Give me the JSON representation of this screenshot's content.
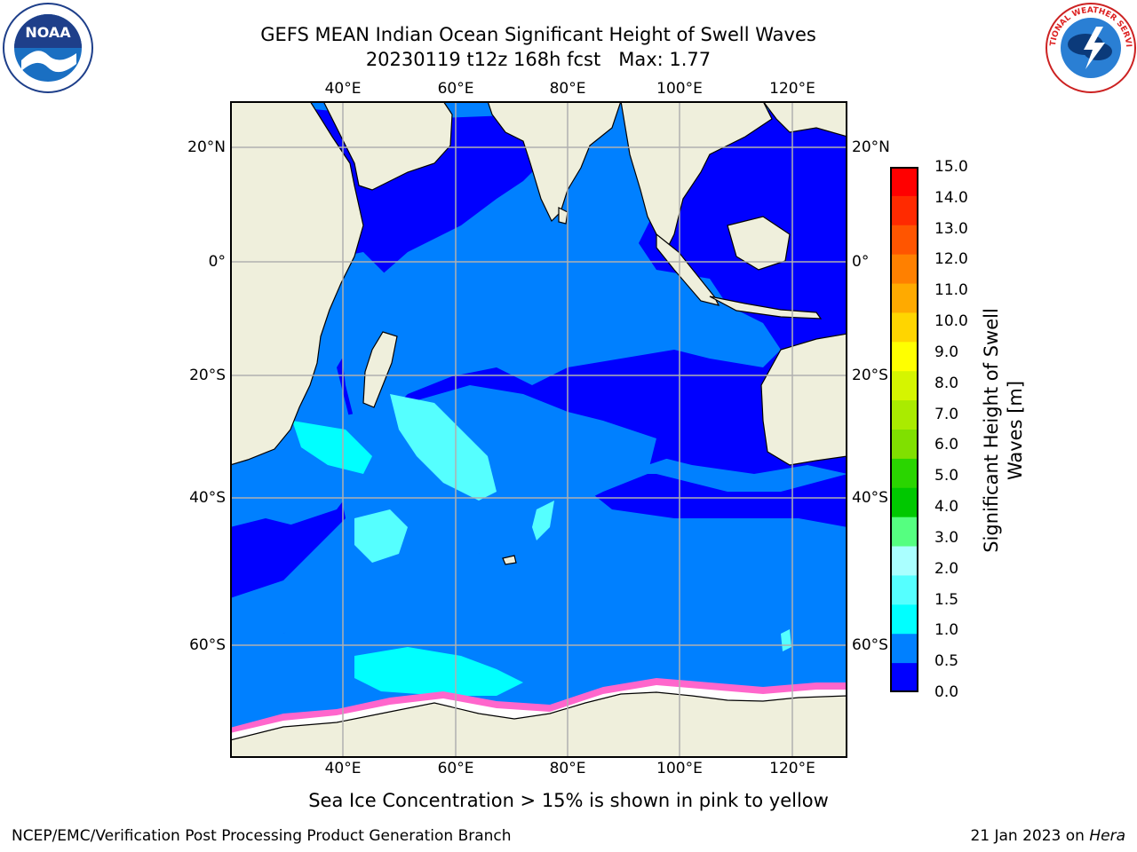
{
  "title": {
    "line1": "GEFS MEAN Indian Ocean Significant Height of Swell Waves",
    "line2": "20230119 t12z 168h fcst   Max: 1.77"
  },
  "axes": {
    "lon_labels": [
      "40°E",
      "60°E",
      "80°E",
      "100°E",
      "120°E"
    ],
    "lat_labels": [
      "20°N",
      "0°",
      "20°S",
      "40°S",
      "60°S"
    ]
  },
  "colorbar": {
    "label_line1": "Significant Height of Swell",
    "label_line2": "Waves [m]",
    "ticks": [
      "15.0",
      "14.0",
      "13.0",
      "12.0",
      "11.0",
      "10.0",
      "9.0",
      "8.0",
      "7.0",
      "6.0",
      "5.0",
      "4.0",
      "3.0",
      "2.0",
      "1.5",
      "1.0",
      "0.5",
      "0.0"
    ],
    "colors": [
      "#ff0000",
      "#ff2a00",
      "#ff5500",
      "#ff8000",
      "#ffaa00",
      "#ffd500",
      "#ffff00",
      "#d5f500",
      "#aaeb00",
      "#80e000",
      "#2ad500",
      "#00c800",
      "#55ff80",
      "#aaffff",
      "#55ffff",
      "#00ffff",
      "#0080ff",
      "#0000ff"
    ]
  },
  "note": "Sea Ice Concentration > 15% is shown in pink to yellow",
  "footer": {
    "left": "NCEP/EMC/Verification Post Processing Product Generation Branch",
    "right_date": "21 Jan 2023 on ",
    "right_host": "Hera"
  },
  "logos": {
    "noaa": "NOAA",
    "nws": "NATIONAL WEATHER SERVICE"
  },
  "map_colors": {
    "land": "#efefdc",
    "ocean_deep": "#0000ff",
    "ocean_mid": "#0080ff",
    "swell_high": "#00ffff",
    "ice": "#ffffff",
    "ice_edge": "#ff66cc",
    "grid": "#b0b0b0"
  }
}
